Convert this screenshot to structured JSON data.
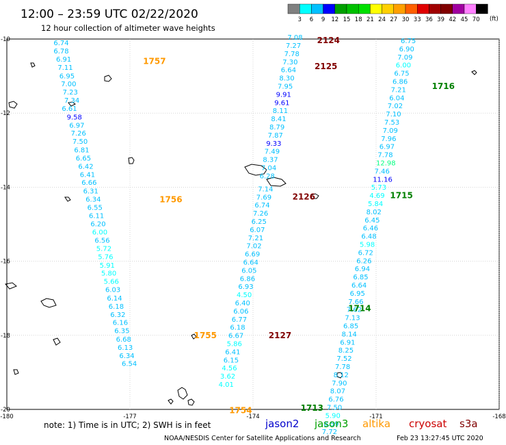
{
  "title": "12:00 – 23:59 UTC 02/22/2020",
  "subtitle": "12 hour collection of altimeter wave heights",
  "unit": "(ft)",
  "color_scale": {
    "labels": [
      "3",
      "6",
      "9",
      "12",
      "15",
      "18",
      "21",
      "24",
      "27",
      "30",
      "33",
      "36",
      "39",
      "42",
      "45",
      "70"
    ],
    "colors": [
      "#808080",
      "#00ffff",
      "#00c0ff",
      "#0000ff",
      "#00a000",
      "#00c000",
      "#00e000",
      "#ffff00",
      "#ffd000",
      "#ffa000",
      "#ff6000",
      "#e00000",
      "#a00000",
      "#800000",
      "#a000a0",
      "#ff80ff",
      "#000000"
    ]
  },
  "axes": {
    "lon_range": [
      -180,
      -168
    ],
    "lat_range": [
      -20,
      -10
    ],
    "lon_labels": [
      {
        "lon": -180,
        "text": "-180"
      },
      {
        "lon": -177,
        "text": "-177"
      },
      {
        "lon": -174,
        "text": "-174"
      },
      {
        "lon": -171,
        "text": "-171"
      },
      {
        "lon": -168,
        "text": "-168"
      },
      {
        "lon": -165.2,
        "text": "-16"
      }
    ],
    "lat_labels": [
      {
        "lat": -10,
        "text": "-10"
      },
      {
        "lat": -12,
        "text": "-12"
      },
      {
        "lat": -14,
        "text": "-14"
      },
      {
        "lat": -16,
        "text": "-16"
      },
      {
        "lat": -18,
        "text": "-18"
      },
      {
        "lat": -20,
        "text": "-20"
      }
    ]
  },
  "passes": [
    {
      "label": "1757",
      "color": "#ff9900",
      "lon": -176.68,
      "lat": -10.6
    },
    {
      "label": "1756",
      "color": "#ff9900",
      "lon": -176.28,
      "lat": -14.33
    },
    {
      "label": "1755",
      "color": "#ff9900",
      "lon": -175.44,
      "lat": -18.0
    },
    {
      "label": "1754",
      "color": "#ff9900",
      "lon": -174.58,
      "lat": -20.03
    },
    {
      "label": "2124",
      "color": "#800000",
      "lon": -172.44,
      "lat": -10.04
    },
    {
      "label": "2125",
      "color": "#800000",
      "lon": -172.5,
      "lat": -10.74
    },
    {
      "label": "2126",
      "color": "#800000",
      "lon": -173.04,
      "lat": -14.26
    },
    {
      "label": "2127",
      "color": "#800000",
      "lon": -173.62,
      "lat": -18.0
    },
    {
      "label": "1716",
      "color": "#008000",
      "lon": -169.64,
      "lat": -11.28
    },
    {
      "label": "1715",
      "color": "#008000",
      "lon": -170.66,
      "lat": -14.22
    },
    {
      "label": "1714",
      "color": "#008000",
      "lon": -171.68,
      "lat": -17.27
    },
    {
      "label": "1713",
      "color": "#008000",
      "lon": -172.84,
      "lat": -19.96
    }
  ],
  "tracks": [
    {
      "mission": "altika",
      "pass": "1754-1757",
      "points": [
        {
          "lon": -178.86,
          "lat": -10.17,
          "v": "6.74",
          "c": "#00c0ff"
        },
        {
          "lon": -178.86,
          "lat": -10.39,
          "v": "6.78",
          "c": "#00c0ff"
        },
        {
          "lon": -178.8,
          "lat": -10.61,
          "v": "6.91",
          "c": "#00c0ff"
        },
        {
          "lon": -178.76,
          "lat": -10.83,
          "v": "7.11",
          "c": "#00c0ff"
        },
        {
          "lon": -178.72,
          "lat": -11.06,
          "v": "6.95",
          "c": "#00c0ff"
        },
        {
          "lon": -178.68,
          "lat": -11.28,
          "v": "7.00",
          "c": "#00c0ff"
        },
        {
          "lon": -178.64,
          "lat": -11.5,
          "v": "7.23",
          "c": "#00c0ff"
        },
        {
          "lon": -178.6,
          "lat": -11.72,
          "v": "7.34",
          "c": "#00c0ff"
        },
        {
          "lon": -178.66,
          "lat": -11.94,
          "v": "6.61",
          "c": "#00c0ff"
        },
        {
          "lon": -178.54,
          "lat": -12.17,
          "v": "9.58",
          "c": "#0000ff"
        },
        {
          "lon": -178.48,
          "lat": -12.39,
          "v": "6.97",
          "c": "#00c0ff"
        },
        {
          "lon": -178.44,
          "lat": -12.61,
          "v": "7.26",
          "c": "#00c0ff"
        },
        {
          "lon": -178.4,
          "lat": -12.83,
          "v": "7.50",
          "c": "#00c0ff"
        },
        {
          "lon": -178.36,
          "lat": -13.06,
          "v": "6.81",
          "c": "#00c0ff"
        },
        {
          "lon": -178.32,
          "lat": -13.28,
          "v": "6.65",
          "c": "#00c0ff"
        },
        {
          "lon": -178.26,
          "lat": -13.5,
          "v": "6.42",
          "c": "#00c0ff"
        },
        {
          "lon": -178.22,
          "lat": -13.72,
          "v": "6.41",
          "c": "#00c0ff"
        },
        {
          "lon": -178.18,
          "lat": -13.94,
          "v": "6.66",
          "c": "#00c0ff"
        },
        {
          "lon": -178.14,
          "lat": -14.17,
          "v": "6.31",
          "c": "#00c0ff"
        },
        {
          "lon": -178.08,
          "lat": -14.39,
          "v": "6.34",
          "c": "#00c0ff"
        },
        {
          "lon": -178.04,
          "lat": -14.61,
          "v": "6.55",
          "c": "#00c0ff"
        },
        {
          "lon": -178.0,
          "lat": -14.83,
          "v": "6.11",
          "c": "#00c0ff"
        },
        {
          "lon": -177.96,
          "lat": -15.06,
          "v": "6.20",
          "c": "#00c0ff"
        },
        {
          "lon": -177.92,
          "lat": -15.28,
          "v": "6.00",
          "c": "#00ffff"
        },
        {
          "lon": -177.86,
          "lat": -15.5,
          "v": "6.56",
          "c": "#00c0ff"
        },
        {
          "lon": -177.82,
          "lat": -15.72,
          "v": "5.72",
          "c": "#00ffff"
        },
        {
          "lon": -177.78,
          "lat": -15.94,
          "v": "5.76",
          "c": "#00ffff"
        },
        {
          "lon": -177.74,
          "lat": -16.17,
          "v": "5.91",
          "c": "#00ffff"
        },
        {
          "lon": -177.7,
          "lat": -16.39,
          "v": "5.80",
          "c": "#00ffff"
        },
        {
          "lon": -177.64,
          "lat": -16.61,
          "v": "5.66",
          "c": "#00ffff"
        },
        {
          "lon": -177.6,
          "lat": -16.83,
          "v": "6.03",
          "c": "#00c0ff"
        },
        {
          "lon": -177.56,
          "lat": -17.06,
          "v": "6.14",
          "c": "#00c0ff"
        },
        {
          "lon": -177.52,
          "lat": -17.28,
          "v": "6.18",
          "c": "#00c0ff"
        },
        {
          "lon": -177.48,
          "lat": -17.5,
          "v": "6.32",
          "c": "#00c0ff"
        },
        {
          "lon": -177.42,
          "lat": -17.72,
          "v": "6.16",
          "c": "#00c0ff"
        },
        {
          "lon": -177.38,
          "lat": -17.94,
          "v": "6.35",
          "c": "#00c0ff"
        },
        {
          "lon": -177.34,
          "lat": -18.17,
          "v": "6.68",
          "c": "#00c0ff"
        },
        {
          "lon": -177.3,
          "lat": -18.39,
          "v": "6.13",
          "c": "#00c0ff"
        },
        {
          "lon": -177.26,
          "lat": -18.61,
          "v": "6.34",
          "c": "#00c0ff"
        },
        {
          "lon": -177.2,
          "lat": -18.83,
          "v": "6.54",
          "c": "#00c0ff"
        }
      ]
    },
    {
      "mission": "cryosat",
      "pass": "2124-2127",
      "points": [
        {
          "lon": -173.16,
          "lat": -10.02,
          "v": "7.08",
          "c": "#00c0ff"
        },
        {
          "lon": -173.2,
          "lat": -10.24,
          "v": "7.27",
          "c": "#00c0ff"
        },
        {
          "lon": -173.24,
          "lat": -10.46,
          "v": "7.78",
          "c": "#00c0ff"
        },
        {
          "lon": -173.28,
          "lat": -10.68,
          "v": "7.30",
          "c": "#00c0ff"
        },
        {
          "lon": -173.32,
          "lat": -10.9,
          "v": "6.64",
          "c": "#00c0ff"
        },
        {
          "lon": -173.36,
          "lat": -11.12,
          "v": "8.30",
          "c": "#00c0ff"
        },
        {
          "lon": -173.4,
          "lat": -11.34,
          "v": "7.95",
          "c": "#00c0ff"
        },
        {
          "lon": -173.44,
          "lat": -11.56,
          "v": "9.91",
          "c": "#0000ff"
        },
        {
          "lon": -173.48,
          "lat": -11.78,
          "v": "9.61",
          "c": "#0000ff"
        },
        {
          "lon": -173.52,
          "lat": -12.0,
          "v": "8.11",
          "c": "#00c0ff"
        },
        {
          "lon": -173.56,
          "lat": -12.22,
          "v": "8.41",
          "c": "#00c0ff"
        },
        {
          "lon": -173.6,
          "lat": -12.44,
          "v": "8.79",
          "c": "#00c0ff"
        },
        {
          "lon": -173.64,
          "lat": -12.66,
          "v": "7.87",
          "c": "#00c0ff"
        },
        {
          "lon": -173.68,
          "lat": -12.88,
          "v": "9.33",
          "c": "#0000ff"
        },
        {
          "lon": -173.72,
          "lat": -13.1,
          "v": "7.49",
          "c": "#00c0ff"
        },
        {
          "lon": -173.76,
          "lat": -13.32,
          "v": "8.37",
          "c": "#00c0ff"
        },
        {
          "lon": -173.8,
          "lat": -13.54,
          "v": "7.04",
          "c": "#00c0ff"
        },
        {
          "lon": -173.84,
          "lat": -13.76,
          "v": "6.28",
          "c": "#00c0ff"
        },
        {
          "lon": -173.88,
          "lat": -14.11,
          "v": "7.14",
          "c": "#00c0ff"
        },
        {
          "lon": -173.92,
          "lat": -14.33,
          "v": "7.69",
          "c": "#00c0ff"
        },
        {
          "lon": -173.96,
          "lat": -14.55,
          "v": "6.74",
          "c": "#00c0ff"
        },
        {
          "lon": -174.0,
          "lat": -14.77,
          "v": "7.26",
          "c": "#00c0ff"
        },
        {
          "lon": -174.04,
          "lat": -14.99,
          "v": "6.25",
          "c": "#00c0ff"
        },
        {
          "lon": -174.08,
          "lat": -15.21,
          "v": "6.07",
          "c": "#00c0ff"
        },
        {
          "lon": -174.12,
          "lat": -15.43,
          "v": "7.21",
          "c": "#00c0ff"
        },
        {
          "lon": -174.16,
          "lat": -15.65,
          "v": "7.02",
          "c": "#00c0ff"
        },
        {
          "lon": -174.2,
          "lat": -15.87,
          "v": "6.69",
          "c": "#00c0ff"
        },
        {
          "lon": -174.24,
          "lat": -16.09,
          "v": "6.64",
          "c": "#00c0ff"
        },
        {
          "lon": -174.28,
          "lat": -16.31,
          "v": "6.05",
          "c": "#00c0ff"
        },
        {
          "lon": -174.32,
          "lat": -16.53,
          "v": "6.86",
          "c": "#00c0ff"
        },
        {
          "lon": -174.36,
          "lat": -16.75,
          "v": "6.93",
          "c": "#00c0ff"
        },
        {
          "lon": -174.4,
          "lat": -16.97,
          "v": "4.50",
          "c": "#00ffff"
        },
        {
          "lon": -174.44,
          "lat": -17.19,
          "v": "6.40",
          "c": "#00c0ff"
        },
        {
          "lon": -174.48,
          "lat": -17.41,
          "v": "6.06",
          "c": "#00c0ff"
        },
        {
          "lon": -174.52,
          "lat": -17.63,
          "v": "6.77",
          "c": "#00c0ff"
        },
        {
          "lon": -174.56,
          "lat": -17.85,
          "v": "6.18",
          "c": "#00c0ff"
        },
        {
          "lon": -174.6,
          "lat": -18.07,
          "v": "6.67",
          "c": "#00c0ff"
        },
        {
          "lon": -174.64,
          "lat": -18.29,
          "v": "5.86",
          "c": "#00ffff"
        },
        {
          "lon": -174.68,
          "lat": -18.51,
          "v": "6.41",
          "c": "#00c0ff"
        },
        {
          "lon": -174.72,
          "lat": -18.73,
          "v": "6.15",
          "c": "#00c0ff"
        },
        {
          "lon": -174.76,
          "lat": -18.95,
          "v": "4.56",
          "c": "#00ffff"
        },
        {
          "lon": -174.8,
          "lat": -19.17,
          "v": "3.62",
          "c": "#00ffff"
        },
        {
          "lon": -174.84,
          "lat": -19.39,
          "v": "4.01",
          "c": "#00ffff"
        }
      ]
    },
    {
      "mission": "jason3",
      "pass": "1713-1716",
      "points": [
        {
          "lon": -170.4,
          "lat": -10.11,
          "v": "6.75",
          "c": "#00c0ff"
        },
        {
          "lon": -170.44,
          "lat": -10.33,
          "v": "6.90",
          "c": "#00c0ff"
        },
        {
          "lon": -170.48,
          "lat": -10.55,
          "v": "7.09",
          "c": "#00c0ff"
        },
        {
          "lon": -170.52,
          "lat": -10.77,
          "v": "6.00",
          "c": "#00ffff"
        },
        {
          "lon": -170.56,
          "lat": -10.99,
          "v": "6.75",
          "c": "#00c0ff"
        },
        {
          "lon": -170.6,
          "lat": -11.21,
          "v": "6.86",
          "c": "#00c0ff"
        },
        {
          "lon": -170.64,
          "lat": -11.43,
          "v": "7.21",
          "c": "#00c0ff"
        },
        {
          "lon": -170.68,
          "lat": -11.65,
          "v": "6.04",
          "c": "#00c0ff"
        },
        {
          "lon": -170.72,
          "lat": -11.87,
          "v": "7.02",
          "c": "#00c0ff"
        },
        {
          "lon": -170.76,
          "lat": -12.09,
          "v": "7.10",
          "c": "#00c0ff"
        },
        {
          "lon": -170.8,
          "lat": -12.31,
          "v": "7.53",
          "c": "#00c0ff"
        },
        {
          "lon": -170.84,
          "lat": -12.53,
          "v": "7.09",
          "c": "#00c0ff"
        },
        {
          "lon": -170.88,
          "lat": -12.75,
          "v": "7.96",
          "c": "#00c0ff"
        },
        {
          "lon": -170.92,
          "lat": -12.97,
          "v": "6.97",
          "c": "#00c0ff"
        },
        {
          "lon": -170.96,
          "lat": -13.19,
          "v": "7.78",
          "c": "#00c0ff"
        },
        {
          "lon": -171.0,
          "lat": -13.41,
          "v": "12.98",
          "c": "#00ff80"
        },
        {
          "lon": -171.04,
          "lat": -13.63,
          "v": "7.46",
          "c": "#00c0ff"
        },
        {
          "lon": -171.08,
          "lat": -13.85,
          "v": "11.16",
          "c": "#0000ff"
        },
        {
          "lon": -171.12,
          "lat": -14.07,
          "v": "5.73",
          "c": "#00ffff"
        },
        {
          "lon": -171.16,
          "lat": -14.29,
          "v": "4.69",
          "c": "#00ffff"
        },
        {
          "lon": -171.2,
          "lat": -14.51,
          "v": "5.84",
          "c": "#00ffff"
        },
        {
          "lon": -171.24,
          "lat": -14.73,
          "v": "8.02",
          "c": "#00c0ff"
        },
        {
          "lon": -171.28,
          "lat": -14.95,
          "v": "6.45",
          "c": "#00c0ff"
        },
        {
          "lon": -171.32,
          "lat": -15.17,
          "v": "6.46",
          "c": "#00c0ff"
        },
        {
          "lon": -171.36,
          "lat": -15.39,
          "v": "6.48",
          "c": "#00c0ff"
        },
        {
          "lon": -171.4,
          "lat": -15.61,
          "v": "5.98",
          "c": "#00ffff"
        },
        {
          "lon": -171.44,
          "lat": -15.83,
          "v": "6.72",
          "c": "#00c0ff"
        },
        {
          "lon": -171.48,
          "lat": -16.05,
          "v": "6.26",
          "c": "#00c0ff"
        },
        {
          "lon": -171.52,
          "lat": -16.27,
          "v": "6.94",
          "c": "#00c0ff"
        },
        {
          "lon": -171.56,
          "lat": -16.49,
          "v": "6.85",
          "c": "#00c0ff"
        },
        {
          "lon": -171.6,
          "lat": -16.71,
          "v": "6.64",
          "c": "#00c0ff"
        },
        {
          "lon": -171.64,
          "lat": -16.93,
          "v": "6.95",
          "c": "#00c0ff"
        },
        {
          "lon": -171.68,
          "lat": -17.15,
          "v": "7.66",
          "c": "#00c0ff"
        },
        {
          "lon": -171.72,
          "lat": -17.37,
          "v": "7.62",
          "c": "#00c0ff"
        },
        {
          "lon": -171.76,
          "lat": -17.59,
          "v": "7.13",
          "c": "#00c0ff"
        },
        {
          "lon": -171.8,
          "lat": -17.81,
          "v": "6.85",
          "c": "#00c0ff"
        },
        {
          "lon": -171.84,
          "lat": -18.03,
          "v": "8.14",
          "c": "#00c0ff"
        },
        {
          "lon": -171.88,
          "lat": -18.25,
          "v": "6.91",
          "c": "#00c0ff"
        },
        {
          "lon": -171.92,
          "lat": -18.47,
          "v": "8.25",
          "c": "#00c0ff"
        },
        {
          "lon": -171.96,
          "lat": -18.69,
          "v": "7.52",
          "c": "#00c0ff"
        },
        {
          "lon": -172.0,
          "lat": -18.91,
          "v": "7.78",
          "c": "#00c0ff"
        },
        {
          "lon": -172.04,
          "lat": -19.13,
          "v": "8.12",
          "c": "#00c0ff"
        },
        {
          "lon": -172.08,
          "lat": -19.35,
          "v": "7.90",
          "c": "#00c0ff"
        },
        {
          "lon": -172.12,
          "lat": -19.57,
          "v": "8.07",
          "c": "#00c0ff"
        },
        {
          "lon": -172.16,
          "lat": -19.79,
          "v": "6.76",
          "c": "#00c0ff"
        },
        {
          "lon": -172.2,
          "lat": -20.01,
          "v": "7.50",
          "c": "#00c0ff"
        },
        {
          "lon": -172.24,
          "lat": -20.23,
          "v": "5.90",
          "c": "#00ffff"
        },
        {
          "lon": -172.28,
          "lat": -20.45,
          "v": "8.59",
          "c": "#00c0ff"
        },
        {
          "lon": -172.32,
          "lat": -20.67,
          "v": "7.72",
          "c": "#00c0ff"
        }
      ]
    }
  ],
  "note": "note: 1) Time is in UTC; 2) SWH is in feet",
  "missions": [
    {
      "name": "jason2",
      "color": "#0000cc"
    },
    {
      "name": "jason3",
      "color": "#00a000"
    },
    {
      "name": "altika",
      "color": "#ff9900"
    },
    {
      "name": "cryosat",
      "color": "#cc0000"
    },
    {
      "name": "s3a",
      "color": "#800000"
    }
  ],
  "credit": "NOAA/NESDIS Center for Satellite Applications and Research",
  "timestamp": "Feb 23 13:27:45 UTC 2020"
}
